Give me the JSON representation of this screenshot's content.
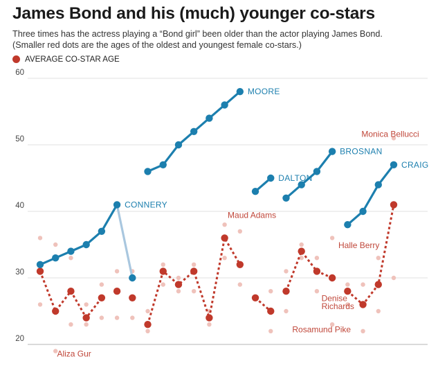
{
  "header": {
    "title": "James Bond and his (much) younger co-stars",
    "subtitle_line1": "Three times has the actress playing a “Bond girl” been older than the actor playing James Bond.",
    "subtitle_line2": "(Smaller red dots are the ages of the oldest and youngest female co-stars.)"
  },
  "legend": {
    "label": "AVERAGE CO-STAR AGE"
  },
  "colors": {
    "actor": "#1c7fae",
    "actor_light": "#a9c7df",
    "average": "#c0392b",
    "range": "#efc2bb",
    "gridline": "#e1e1e1",
    "zeroline": "#b5b5b5"
  },
  "chart_data": {
    "type": "scatter",
    "ylim": [
      20,
      60
    ],
    "yticks": [
      20,
      30,
      40,
      50,
      60
    ],
    "film_count": 26,
    "actors": [
      {
        "name": "CONNERY",
        "segments": [
          {
            "films": [
              1,
              2,
              3,
              4,
              5,
              6
            ],
            "ages": [
              32,
              33,
              34,
              35,
              37,
              41
            ],
            "style": "solid"
          },
          {
            "films": [
              6,
              7
            ],
            "ages": [
              41,
              30
            ],
            "style": "faded"
          }
        ]
      },
      {
        "name": "MOORE",
        "segments": [
          {
            "films": [
              8,
              9,
              10,
              11,
              12,
              13,
              14
            ],
            "ages": [
              46,
              47,
              50,
              52,
              54,
              56,
              58
            ],
            "style": "solid"
          }
        ]
      },
      {
        "name": "DALTON",
        "segments": [
          {
            "films": [
              15,
              16
            ],
            "ages": [
              43,
              45
            ],
            "style": "solid"
          }
        ]
      },
      {
        "name": "BROSNAN",
        "segments": [
          {
            "films": [
              17,
              18,
              19,
              20
            ],
            "ages": [
              42,
              44,
              46,
              49
            ],
            "style": "solid"
          }
        ]
      },
      {
        "name": "CRAIG",
        "segments": [
          {
            "films": [
              21,
              22,
              23,
              24
            ],
            "ages": [
              38,
              40,
              44,
              47
            ],
            "style": "solid"
          }
        ]
      }
    ],
    "average_costar_age": {
      "segments": [
        {
          "films": [
            1,
            2,
            3,
            4,
            5
          ],
          "values": [
            31,
            25,
            28,
            24,
            27
          ]
        },
        {
          "films": [
            8,
            9,
            10,
            11,
            12,
            13,
            14
          ],
          "values": [
            23,
            31,
            29,
            31,
            24,
            36,
            32
          ]
        },
        {
          "films": [
            15,
            16
          ],
          "values": [
            27,
            25
          ]
        },
        {
          "films": [
            17,
            18,
            19,
            20
          ],
          "values": [
            28,
            34,
            31,
            30
          ]
        },
        {
          "films": [
            21,
            22,
            23,
            24
          ],
          "values": [
            28,
            26,
            29,
            41
          ]
        }
      ],
      "isolated": [
        {
          "film": 6,
          "value": 28
        },
        {
          "film": 7,
          "value": 27
        }
      ]
    },
    "costar_range": [
      {
        "film": 1,
        "min": 26,
        "max": 36
      },
      {
        "film": 2,
        "min": 19,
        "max": 35
      },
      {
        "film": 3,
        "min": 23,
        "max": 33
      },
      {
        "film": 4,
        "min": 23,
        "max": 26
      },
      {
        "film": 5,
        "min": 24,
        "max": 29
      },
      {
        "film": 6,
        "min": 24,
        "max": 31
      },
      {
        "film": 7,
        "min": 24,
        "max": 31
      },
      {
        "film": 8,
        "min": 22,
        "max": 25
      },
      {
        "film": 9,
        "min": 29,
        "max": 32
      },
      {
        "film": 10,
        "min": 28,
        "max": 30
      },
      {
        "film": 11,
        "min": 28,
        "max": 32
      },
      {
        "film": 12,
        "min": 23,
        "max": 25
      },
      {
        "film": 13,
        "min": 33,
        "max": 38
      },
      {
        "film": 14,
        "min": 29,
        "max": 37
      },
      {
        "film": 16,
        "min": 22,
        "max": 28
      },
      {
        "film": 17,
        "min": 25,
        "max": 31
      },
      {
        "film": 18,
        "min": 33,
        "max": 35
      },
      {
        "film": 19,
        "min": 28,
        "max": 33
      },
      {
        "film": 20,
        "min": 23,
        "max": 36
      },
      {
        "film": 21,
        "min": 26,
        "max": 29
      },
      {
        "film": 22,
        "min": 22,
        "max": 29
      },
      {
        "film": 23,
        "min": 25,
        "max": 33
      },
      {
        "film": 24,
        "min": 30,
        "max": 51
      }
    ],
    "annotations": [
      {
        "text": "Aliza Gur",
        "film": 2.1,
        "age": 18.2
      },
      {
        "text": "Maud Adams",
        "film": 13.2,
        "age": 39.0
      },
      {
        "text": "Halle Berry",
        "film": 20.4,
        "age": 34.5
      },
      {
        "text": "Denise",
        "film": 19.3,
        "age": 26.5
      },
      {
        "text": "Richards",
        "film": 19.3,
        "age": 25.3
      },
      {
        "text": "Rosamund Pike",
        "film": 17.4,
        "age": 21.8
      },
      {
        "text": "Monica Bellucci",
        "film": 21.9,
        "age": 51.2
      }
    ]
  }
}
